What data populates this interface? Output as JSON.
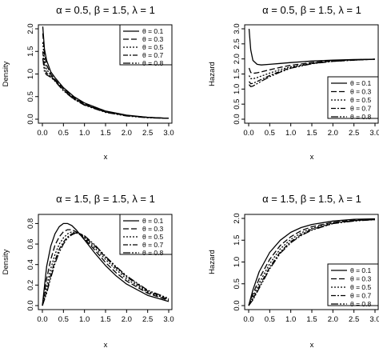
{
  "chart_data": [
    {
      "type": "line",
      "title": "α = 0.5, β = 1.5, λ = 1",
      "xlabel": "x",
      "ylabel": "Density",
      "xlim": [
        0,
        3
      ],
      "ylim": [
        0,
        2
      ],
      "xticks": [
        "0.0",
        "0.5",
        "1.0",
        "1.5",
        "2.0",
        "2.5",
        "3.0"
      ],
      "yticks": [
        "0.0",
        "0.5",
        "1.0",
        "1.5",
        "2.0"
      ],
      "legend_position": "top-right",
      "x": [
        0.01,
        0.05,
        0.1,
        0.2,
        0.3,
        0.5,
        0.75,
        1.0,
        1.5,
        2.0,
        2.5,
        3.0
      ],
      "series": [
        {
          "name": "θ = 0.1",
          "values": [
            2.05,
            1.55,
            1.3,
            1.05,
            0.92,
            0.7,
            0.5,
            0.36,
            0.18,
            0.09,
            0.04,
            0.02
          ]
        },
        {
          "name": "θ = 0.3",
          "values": [
            1.9,
            1.45,
            1.2,
            1.0,
            0.88,
            0.68,
            0.48,
            0.34,
            0.17,
            0.08,
            0.04,
            0.02
          ]
        },
        {
          "name": "θ = 0.5",
          "values": [
            1.7,
            1.3,
            1.1,
            0.97,
            0.86,
            0.66,
            0.46,
            0.33,
            0.16,
            0.08,
            0.04,
            0.02
          ]
        },
        {
          "name": "θ = 0.7",
          "values": [
            1.5,
            1.15,
            1.02,
            0.95,
            0.85,
            0.64,
            0.45,
            0.32,
            0.16,
            0.08,
            0.04,
            0.02
          ]
        },
        {
          "name": "θ = 0.8",
          "values": [
            1.35,
            1.05,
            0.98,
            0.93,
            0.84,
            0.63,
            0.44,
            0.31,
            0.15,
            0.07,
            0.03,
            0.02
          ]
        }
      ]
    },
    {
      "type": "line",
      "title": "α = 0.5, β = 1.5, λ = 1",
      "xlabel": "x",
      "ylabel": "Hazard",
      "xlim": [
        0,
        3
      ],
      "ylim": [
        0,
        3
      ],
      "xticks": [
        "0.0",
        "0.5",
        "1.0",
        "1.5",
        "2.0",
        "2.5",
        "3.0"
      ],
      "yticks": [
        "0.0",
        "0.5",
        "1.0",
        "1.5",
        "2.0",
        "2.5",
        "3.0"
      ],
      "legend_position": "bottom-right",
      "x": [
        0.01,
        0.05,
        0.1,
        0.2,
        0.3,
        0.5,
        0.75,
        1.0,
        1.5,
        2.0,
        2.5,
        3.0
      ],
      "series": [
        {
          "name": "θ = 0.1",
          "values": [
            3.0,
            2.3,
            1.95,
            1.82,
            1.8,
            1.82,
            1.85,
            1.88,
            1.93,
            1.96,
            1.98,
            1.99
          ]
        },
        {
          "name": "θ = 0.3",
          "values": [
            1.7,
            1.55,
            1.52,
            1.54,
            1.57,
            1.64,
            1.72,
            1.79,
            1.88,
            1.94,
            1.97,
            1.99
          ]
        },
        {
          "name": "θ = 0.5",
          "values": [
            1.45,
            1.35,
            1.34,
            1.38,
            1.43,
            1.53,
            1.65,
            1.74,
            1.86,
            1.93,
            1.97,
            1.99
          ]
        },
        {
          "name": "θ = 0.7",
          "values": [
            1.25,
            1.18,
            1.19,
            1.25,
            1.32,
            1.45,
            1.59,
            1.71,
            1.85,
            1.92,
            1.96,
            1.99
          ]
        },
        {
          "name": "θ = 0.8",
          "values": [
            1.15,
            1.08,
            1.1,
            1.18,
            1.26,
            1.41,
            1.56,
            1.69,
            1.84,
            1.92,
            1.96,
            1.99
          ]
        }
      ]
    },
    {
      "type": "line",
      "title": "α = 1.5, β = 1.5, λ = 1",
      "xlabel": "x",
      "ylabel": "Density",
      "xlim": [
        0,
        3
      ],
      "ylim": [
        0,
        0.85
      ],
      "xticks": [
        "0.0",
        "0.5",
        "1.0",
        "1.5",
        "2.0",
        "2.5",
        "3.0"
      ],
      "yticks": [
        "0.0",
        "0.2",
        "0.4",
        "0.6",
        "0.8"
      ],
      "legend_position": "top-right",
      "x": [
        0.0,
        0.1,
        0.2,
        0.3,
        0.4,
        0.5,
        0.6,
        0.7,
        0.8,
        0.9,
        1.0,
        1.25,
        1.5,
        1.75,
        2.0,
        2.5,
        3.0
      ],
      "series": [
        {
          "name": "θ = 0.1",
          "values": [
            0.0,
            0.38,
            0.58,
            0.7,
            0.77,
            0.8,
            0.8,
            0.78,
            0.74,
            0.69,
            0.64,
            0.51,
            0.39,
            0.29,
            0.21,
            0.1,
            0.04
          ]
        },
        {
          "name": "θ = 0.3",
          "values": [
            0.0,
            0.26,
            0.45,
            0.59,
            0.67,
            0.72,
            0.74,
            0.74,
            0.72,
            0.69,
            0.65,
            0.54,
            0.42,
            0.32,
            0.24,
            0.12,
            0.05
          ]
        },
        {
          "name": "θ = 0.5",
          "values": [
            0.0,
            0.19,
            0.36,
            0.5,
            0.6,
            0.66,
            0.7,
            0.72,
            0.71,
            0.69,
            0.66,
            0.56,
            0.45,
            0.35,
            0.26,
            0.13,
            0.06
          ]
        },
        {
          "name": "θ = 0.7",
          "values": [
            0.0,
            0.14,
            0.3,
            0.44,
            0.55,
            0.62,
            0.67,
            0.7,
            0.71,
            0.7,
            0.67,
            0.58,
            0.47,
            0.37,
            0.28,
            0.14,
            0.06
          ]
        },
        {
          "name": "θ = 0.8",
          "values": [
            0.0,
            0.12,
            0.27,
            0.41,
            0.52,
            0.6,
            0.66,
            0.69,
            0.71,
            0.7,
            0.68,
            0.59,
            0.48,
            0.38,
            0.29,
            0.15,
            0.07
          ]
        }
      ]
    },
    {
      "type": "line",
      "title": "α = 1.5, β = 1.5, λ = 1",
      "xlabel": "x",
      "ylabel": "Hazard",
      "xlim": [
        0,
        3
      ],
      "ylim": [
        0,
        2
      ],
      "xticks": [
        "0.0",
        "0.5",
        "1.0",
        "1.5",
        "2.0",
        "2.5",
        "3.0"
      ],
      "yticks": [
        "0.0",
        "0.5",
        "1.0",
        "1.5",
        "2.0"
      ],
      "legend_position": "bottom-right",
      "x": [
        0.0,
        0.1,
        0.25,
        0.5,
        0.75,
        1.0,
        1.25,
        1.5,
        2.0,
        2.5,
        3.0
      ],
      "series": [
        {
          "name": "θ = 0.1",
          "values": [
            0.0,
            0.36,
            0.78,
            1.22,
            1.5,
            1.68,
            1.79,
            1.86,
            1.94,
            1.98,
            1.99
          ]
        },
        {
          "name": "θ = 0.3",
          "values": [
            0.0,
            0.26,
            0.62,
            1.06,
            1.38,
            1.58,
            1.72,
            1.81,
            1.91,
            1.96,
            1.98
          ]
        },
        {
          "name": "θ = 0.5",
          "values": [
            0.0,
            0.2,
            0.52,
            0.96,
            1.3,
            1.52,
            1.67,
            1.77,
            1.9,
            1.95,
            1.98
          ]
        },
        {
          "name": "θ = 0.7",
          "values": [
            0.0,
            0.15,
            0.44,
            0.88,
            1.23,
            1.47,
            1.63,
            1.75,
            1.88,
            1.95,
            1.97
          ]
        },
        {
          "name": "θ = 0.8",
          "values": [
            0.0,
            0.13,
            0.4,
            0.84,
            1.2,
            1.44,
            1.61,
            1.73,
            1.88,
            1.94,
            1.97
          ]
        }
      ]
    }
  ]
}
